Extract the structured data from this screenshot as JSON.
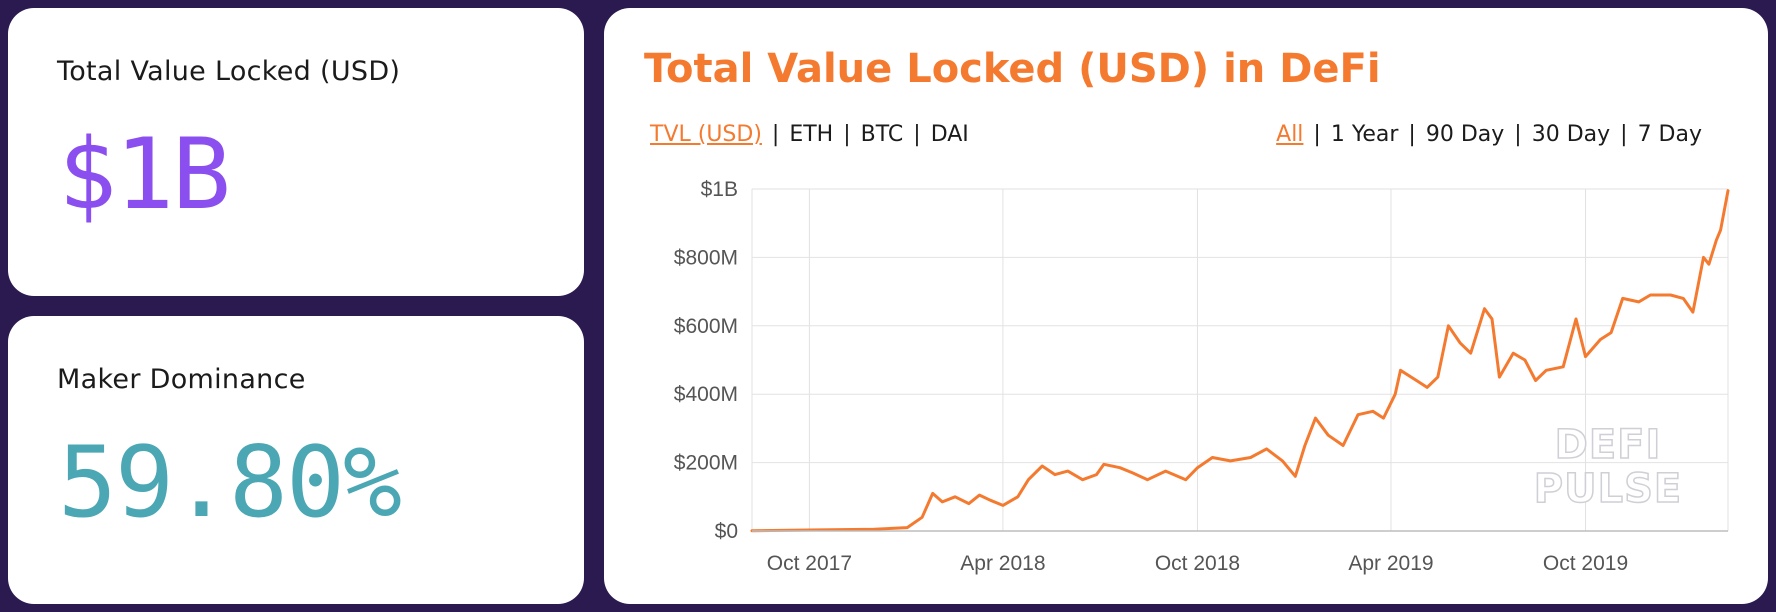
{
  "tvl_card": {
    "label": "Total Value Locked (USD)",
    "value": "$1B"
  },
  "maker_card": {
    "label": "Maker Dominance",
    "value": "59.80%"
  },
  "chart_card": {
    "title": "Total Value Locked (USD) in DeFi",
    "asset_options": [
      "TVL (USD)",
      "ETH",
      "BTC",
      "DAI"
    ],
    "asset_selected": 0,
    "range_options": [
      "All",
      "1 Year",
      "90 Day",
      "30 Day",
      "7 Day"
    ],
    "range_selected": 0,
    "watermark": [
      "DEFI",
      "PULSE"
    ]
  },
  "colors": {
    "accent": "#f47a30",
    "tvl_value": "#8b4ff0",
    "maker_value": "#4aa7b3",
    "background": "#2a1a4f"
  },
  "chart_data": {
    "type": "line",
    "title": "",
    "xlabel": "",
    "ylabel": "",
    "x_unit": "date",
    "x_ticks": [
      {
        "label": "Oct 2017",
        "date": "2017-10-01"
      },
      {
        "label": "Apr 2018",
        "date": "2018-04-01"
      },
      {
        "label": "Oct 2018",
        "date": "2018-10-01"
      },
      {
        "label": "Apr 2019",
        "date": "2019-04-01"
      },
      {
        "label": "Oct 2019",
        "date": "2019-10-01"
      }
    ],
    "y_ticks": [
      {
        "label": "$0",
        "value": 0
      },
      {
        "label": "$200M",
        "value": 200
      },
      {
        "label": "$400M",
        "value": 400
      },
      {
        "label": "$600M",
        "value": 600
      },
      {
        "label": "$800M",
        "value": 800
      },
      {
        "label": "$1B",
        "value": 1000
      }
    ],
    "y_unit": "USD millions",
    "xlim": [
      "2017-08-08",
      "2020-02-12"
    ],
    "ylim": [
      0,
      1000
    ],
    "grid": true,
    "series": [
      {
        "color": "#f47a30",
        "points": [
          [
            "2017-08-08",
            1
          ],
          [
            "2017-10-01",
            3
          ],
          [
            "2017-12-01",
            5
          ],
          [
            "2018-01-01",
            10
          ],
          [
            "2018-01-15",
            40
          ],
          [
            "2018-01-25",
            110
          ],
          [
            "2018-02-03",
            85
          ],
          [
            "2018-02-15",
            100
          ],
          [
            "2018-02-28",
            80
          ],
          [
            "2018-03-10",
            105
          ],
          [
            "2018-03-20",
            90
          ],
          [
            "2018-04-01",
            75
          ],
          [
            "2018-04-15",
            100
          ],
          [
            "2018-04-25",
            150
          ],
          [
            "2018-05-08",
            190
          ],
          [
            "2018-05-20",
            165
          ],
          [
            "2018-06-01",
            175
          ],
          [
            "2018-06-15",
            150
          ],
          [
            "2018-06-28",
            165
          ],
          [
            "2018-07-05",
            195
          ],
          [
            "2018-07-20",
            185
          ],
          [
            "2018-08-01",
            170
          ],
          [
            "2018-08-15",
            150
          ],
          [
            "2018-09-01",
            175
          ],
          [
            "2018-09-20",
            150
          ],
          [
            "2018-10-01",
            185
          ],
          [
            "2018-10-15",
            215
          ],
          [
            "2018-11-01",
            205
          ],
          [
            "2018-11-20",
            215
          ],
          [
            "2018-12-05",
            240
          ],
          [
            "2018-12-20",
            205
          ],
          [
            "2019-01-01",
            160
          ],
          [
            "2019-01-10",
            250
          ],
          [
            "2019-01-20",
            330
          ],
          [
            "2019-02-01",
            280
          ],
          [
            "2019-02-15",
            250
          ],
          [
            "2019-03-01",
            340
          ],
          [
            "2019-03-15",
            350
          ],
          [
            "2019-03-25",
            330
          ],
          [
            "2019-04-05",
            400
          ],
          [
            "2019-04-10",
            470
          ],
          [
            "2019-04-25",
            440
          ],
          [
            "2019-05-05",
            420
          ],
          [
            "2019-05-15",
            450
          ],
          [
            "2019-05-25",
            600
          ],
          [
            "2019-06-05",
            550
          ],
          [
            "2019-06-15",
            520
          ],
          [
            "2019-06-28",
            650
          ],
          [
            "2019-07-05",
            620
          ],
          [
            "2019-07-12",
            450
          ],
          [
            "2019-07-25",
            520
          ],
          [
            "2019-08-05",
            500
          ],
          [
            "2019-08-15",
            440
          ],
          [
            "2019-08-25",
            470
          ],
          [
            "2019-09-10",
            480
          ],
          [
            "2019-09-22",
            620
          ],
          [
            "2019-10-01",
            510
          ],
          [
            "2019-10-15",
            560
          ],
          [
            "2019-10-25",
            580
          ],
          [
            "2019-11-05",
            680
          ],
          [
            "2019-11-20",
            670
          ],
          [
            "2019-12-01",
            690
          ],
          [
            "2019-12-20",
            690
          ],
          [
            "2020-01-01",
            680
          ],
          [
            "2020-01-10",
            640
          ],
          [
            "2020-01-20",
            800
          ],
          [
            "2020-01-25",
            780
          ],
          [
            "2020-02-01",
            850
          ],
          [
            "2020-02-05",
            880
          ],
          [
            "2020-02-12",
            995
          ]
        ]
      }
    ]
  }
}
